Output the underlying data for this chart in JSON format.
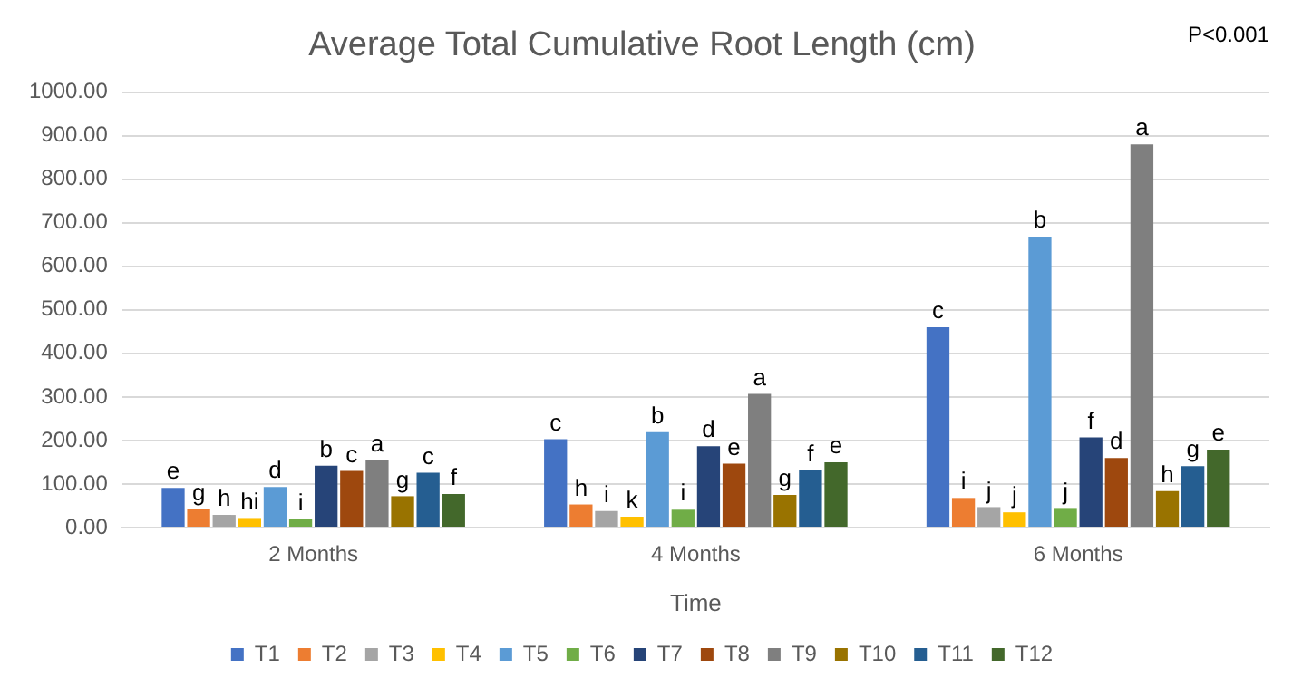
{
  "chart_data": {
    "type": "bar",
    "title": "Average Total Cumulative Root Length (cm)",
    "xlabel": "Time",
    "categories": [
      "2 Months",
      "4 Months",
      "6 Months"
    ],
    "series": [
      {
        "name": "T1",
        "color": "#4472c4",
        "values": [
          91,
          203,
          460
        ],
        "value_labels": [
          "e",
          "c",
          "c"
        ]
      },
      {
        "name": "T2",
        "color": "#ed7d31",
        "values": [
          42,
          53,
          68
        ],
        "value_labels": [
          "g",
          "h",
          "i"
        ]
      },
      {
        "name": "T3",
        "color": "#a5a5a5",
        "values": [
          29,
          38,
          47
        ],
        "value_labels": [
          "h",
          "i",
          "j"
        ]
      },
      {
        "name": "T4",
        "color": "#ffc000",
        "values": [
          22,
          25,
          35
        ],
        "value_labels": [
          "hi",
          "k",
          "j"
        ]
      },
      {
        "name": "T5",
        "color": "#5b9bd5",
        "values": [
          93,
          219,
          668
        ],
        "value_labels": [
          "d",
          "b",
          "b"
        ]
      },
      {
        "name": "T6",
        "color": "#70ad47",
        "values": [
          20,
          41,
          45
        ],
        "value_labels": [
          "i",
          "i",
          "j"
        ]
      },
      {
        "name": "T7",
        "color": "#264478",
        "values": [
          142,
          187,
          207
        ],
        "value_labels": [
          "b",
          "d",
          "f"
        ]
      },
      {
        "name": "T8",
        "color": "#9e480e",
        "values": [
          130,
          147,
          160
        ],
        "value_labels": [
          "c",
          "e",
          "d"
        ]
      },
      {
        "name": "T9",
        "color": "#7f7f7f",
        "values": [
          154,
          307,
          880
        ],
        "value_labels": [
          "a",
          "a",
          "a"
        ]
      },
      {
        "name": "T10",
        "color": "#997300",
        "values": [
          72,
          75,
          84
        ],
        "value_labels": [
          "g",
          "g",
          "h"
        ]
      },
      {
        "name": "T11",
        "color": "#255e91",
        "values": [
          126,
          131,
          141
        ],
        "value_labels": [
          "c",
          "f",
          "g"
        ]
      },
      {
        "name": "T12",
        "color": "#43682b",
        "values": [
          77,
          150,
          179
        ],
        "value_labels": [
          "f",
          "e",
          "e"
        ]
      }
    ],
    "ylim": [
      0,
      1000
    ],
    "yticks": [
      {
        "value": 0,
        "label": "0.00"
      },
      {
        "value": 100,
        "label": "100.00"
      },
      {
        "value": 200,
        "label": "200.00"
      },
      {
        "value": 300,
        "label": "300.00"
      },
      {
        "value": 400,
        "label": "400.00"
      },
      {
        "value": 500,
        "label": "500.00"
      },
      {
        "value": 600,
        "label": "600.00"
      },
      {
        "value": 700,
        "label": "700.00"
      },
      {
        "value": 800,
        "label": "800.00"
      },
      {
        "value": 900,
        "label": "900.00"
      },
      {
        "value": 1000,
        "label": "1000.00"
      }
    ],
    "grid": "y",
    "legend": "bottom",
    "annotations": [
      "P<0.001"
    ]
  }
}
